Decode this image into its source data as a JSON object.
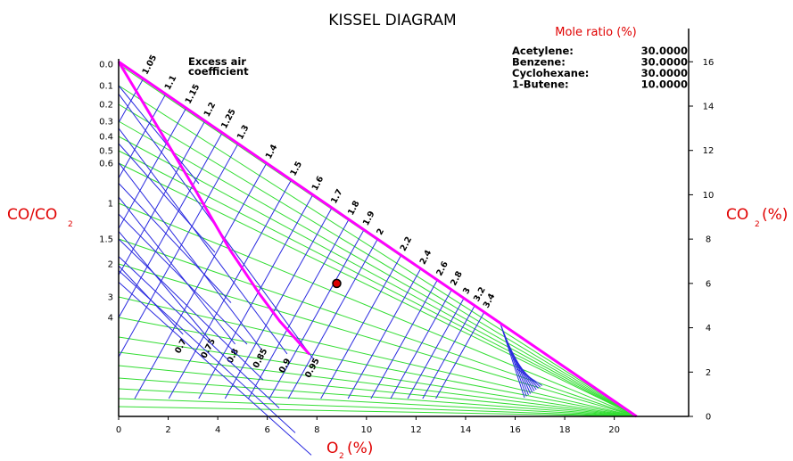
{
  "chart_data": {
    "type": "line",
    "title": "KISSEL DIAGRAM",
    "xlabel": {
      "main": "O",
      "sub": "2",
      "unit": "(%)"
    },
    "ylabel_left": {
      "main": "CO/CO",
      "sub": "2"
    },
    "ylabel_right": {
      "main": "CO",
      "sub": "2",
      "unit": "(%)"
    },
    "x_ticks": [
      "0",
      "2",
      "4",
      "6",
      "8",
      "10",
      "12",
      "14",
      "16",
      "18",
      "20"
    ],
    "y_right_ticks": [
      "0",
      "2",
      "4",
      "6",
      "8",
      "10",
      "12",
      "14",
      "16"
    ],
    "xlim": [
      0,
      23
    ],
    "ylim_right": [
      0,
      17.5
    ],
    "stoich_line": {
      "co2_max": 16.0,
      "o2_max": 20.9
    },
    "left_ticks": [
      {
        "label": "0.0",
        "ratio": 0.0
      },
      {
        "label": "0.1",
        "ratio": 0.1
      },
      {
        "label": "0.2",
        "ratio": 0.2
      },
      {
        "label": "0.3",
        "ratio": 0.3
      },
      {
        "label": "0.4",
        "ratio": 0.4
      },
      {
        "label": "0.5",
        "ratio": 0.5
      },
      {
        "label": "0.6",
        "ratio": 0.6
      },
      {
        "label": "1",
        "ratio": 1.0
      },
      {
        "label": "1.5",
        "ratio": 1.5
      },
      {
        "label": "2",
        "ratio": 2.0
      },
      {
        "label": "3",
        "ratio": 3.0
      },
      {
        "label": "4",
        "ratio": 4.0
      }
    ],
    "excess_air_label": [
      "Excess air",
      "coefficient"
    ],
    "excess_air_lines": [
      {
        "label": "1.05",
        "value": 1.05
      },
      {
        "label": "1.1",
        "value": 1.1
      },
      {
        "label": "1.15",
        "value": 1.15
      },
      {
        "label": "1.2",
        "value": 1.2
      },
      {
        "label": "1.25",
        "value": 1.25
      },
      {
        "label": "1.3",
        "value": 1.3
      },
      {
        "label": "1.4",
        "value": 1.4
      },
      {
        "label": "1.5",
        "value": 1.5
      },
      {
        "label": "1.6",
        "value": 1.6
      },
      {
        "label": "1.7",
        "value": 1.7
      },
      {
        "label": "1.8",
        "value": 1.8
      },
      {
        "label": "1.9",
        "value": 1.9
      },
      {
        "label": "2",
        "value": 2.0
      },
      {
        "label": "2.2",
        "value": 2.2
      },
      {
        "label": "2.4",
        "value": 2.4
      },
      {
        "label": "2.6",
        "value": 2.6
      },
      {
        "label": "2.8",
        "value": 2.8
      },
      {
        "label": "3",
        "value": 3.0
      },
      {
        "label": "3.2",
        "value": 3.2
      },
      {
        "label": "3.4",
        "value": 3.4
      }
    ],
    "deficient_air_lines": [
      {
        "label": "0.7",
        "value": 0.7
      },
      {
        "label": "0.75",
        "value": 0.75
      },
      {
        "label": "0.8",
        "value": 0.8
      },
      {
        "label": "0.85",
        "value": 0.85
      },
      {
        "label": "0.9",
        "value": 0.9
      },
      {
        "label": "0.95",
        "value": 0.95
      }
    ],
    "stoich_curve": [
      {
        "o2": 0.0,
        "co2": 16.0
      },
      {
        "o2": 1.5,
        "co2": 13.2
      },
      {
        "o2": 3.0,
        "co2": 10.4
      },
      {
        "o2": 4.5,
        "co2": 7.5
      },
      {
        "o2": 5.7,
        "co2": 5.5
      },
      {
        "o2": 6.5,
        "co2": 4.3
      },
      {
        "o2": 7.7,
        "co2": 2.8
      }
    ],
    "measured_point": {
      "o2": 8.8,
      "co2": 6.0
    },
    "mole_ratio": {
      "title": "Mole ratio (%)",
      "rows": [
        {
          "name": "Acetylene:",
          "value": "30.0000"
        },
        {
          "name": "Benzene:",
          "value": "30.0000"
        },
        {
          "name": "Cyclohexane:",
          "value": "30.0000"
        },
        {
          "name": "1-Butene:",
          "value": "10.0000"
        }
      ]
    },
    "colors": {
      "stoich": "#ff00ff",
      "excess_air": "#2a2ae0",
      "co_ratio": "#33dd33",
      "point": "#dd0000",
      "label_red": "#e00000"
    }
  }
}
